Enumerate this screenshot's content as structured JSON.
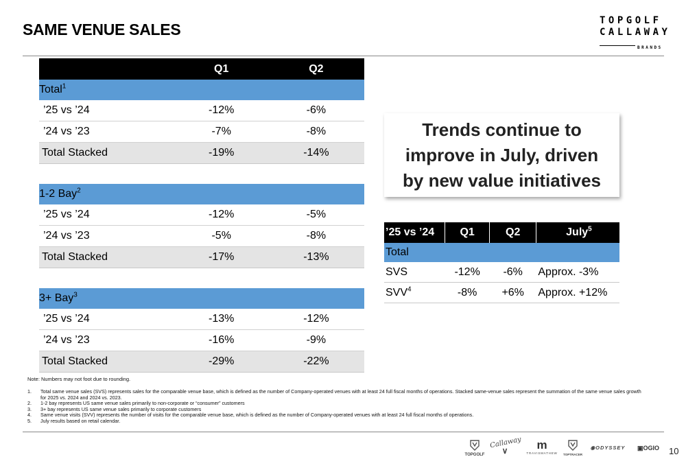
{
  "title": "SAME VENUE SALES",
  "brand": {
    "line1": "TOPGOLF",
    "line2": "CALLAWAY",
    "line3": "BRANDS"
  },
  "main_table": {
    "headers": [
      "",
      "Q1",
      "Q2"
    ],
    "sections": [
      {
        "label": "Total",
        "sup": "1",
        "rows": [
          [
            "’25 vs ’24",
            "-12%",
            "-6%"
          ],
          [
            "’24 vs ’23",
            "-7%",
            "-8%"
          ]
        ],
        "total": [
          "Total Stacked",
          "-19%",
          "-14%"
        ]
      },
      {
        "label": "1-2 Bay",
        "sup": "2",
        "rows": [
          [
            "’25 vs ’24",
            "-12%",
            "-5%"
          ],
          [
            "’24 vs ’23",
            "-5%",
            "-8%"
          ]
        ],
        "total": [
          "Total Stacked",
          "-17%",
          "-13%"
        ]
      },
      {
        "label": "3+ Bay",
        "sup": "3",
        "rows": [
          [
            "’25 vs ’24",
            "-13%",
            "-12%"
          ],
          [
            "’24 vs ’23",
            "-16%",
            "-9%"
          ]
        ],
        "total": [
          "Total Stacked",
          "-29%",
          "-22%"
        ]
      }
    ]
  },
  "callout": {
    "line1": "Trends continue to",
    "line2": "improve in July, driven",
    "line3": "by new value initiatives"
  },
  "side_table": {
    "headers": [
      "’25 vs ’24",
      "Q1",
      "Q2",
      "July"
    ],
    "july_sup": "5",
    "section": "Total",
    "rows": [
      {
        "label": "SVS",
        "sup": "",
        "q1": "-12%",
        "q2": "-6%",
        "july": "Approx. -3%"
      },
      {
        "label": "SVV",
        "sup": "4",
        "q1": "-8%",
        "q2": "+6%",
        "july": "Approx. +12%"
      }
    ]
  },
  "note": "Note: Numbers may not foot due to rounding.",
  "footnotes": [
    {
      "n": "1.",
      "text": "Total same venue sales (SVS) represents sales for the comparable venue base, which is defined as the number of Company-operated venues with at least 24 full fiscal months of operations. Stacked same-venue sales represent the summation of the same venue sales growth for 2025 vs. 2024 and 2024 vs. 2023."
    },
    {
      "n": "2.",
      "text": "1-2 bay represents US same venue sales primarily to non-corporate or “consumer” customers"
    },
    {
      "n": "3.",
      "text": "3+ bay represents US same venue sales primarily to corporate customers"
    },
    {
      "n": "4.",
      "text": "Same venue visits (SVV) represents the number of visits for the comparable venue base, which is defined as the number of Company-operated venues with at least 24 full fiscal months of operations."
    },
    {
      "n": "5.",
      "text": "July results based on retail calendar."
    }
  ],
  "logos": {
    "topgolf": "TOPGOLF",
    "callaway": "Callaway",
    "travismathew": "TRAVISMATHEW",
    "toptracer": "TOPTRACER",
    "odyssey": "ODYSSEY",
    "ogio": "OGIO"
  },
  "page_number": "10"
}
